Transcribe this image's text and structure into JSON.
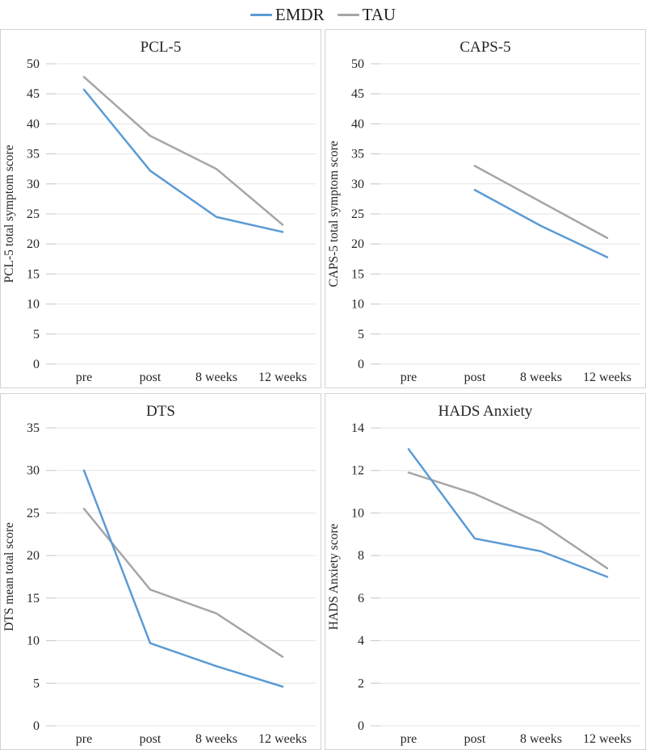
{
  "legend": {
    "position": "top-center",
    "items": [
      {
        "label": "EMDR",
        "color": "#5B9BD5"
      },
      {
        "label": "TAU",
        "color": "#A6A6A6"
      }
    ]
  },
  "style": {
    "gridline_color": "#e4e4e4",
    "tick_stub_color": "#c9c9c9",
    "panel_border_color": "#d2d2d2",
    "text_color": "#262626",
    "line_width": 2.5
  },
  "chart_data": [
    {
      "type": "line",
      "title": "PCL-5",
      "ylabel": "PCL-5 total symptom score",
      "xlabel": "",
      "categories": [
        "pre",
        "post",
        "8 weeks",
        "12 weeks"
      ],
      "ylim": [
        0,
        50
      ],
      "ystep": 5,
      "grid": true,
      "series": [
        {
          "name": "EMDR",
          "color": "#5B9BD5",
          "values": [
            45.7,
            32.2,
            24.5,
            22.0
          ]
        },
        {
          "name": "TAU",
          "color": "#A6A6A6",
          "values": [
            47.8,
            38.0,
            32.5,
            23.2
          ]
        }
      ]
    },
    {
      "type": "line",
      "title": "CAPS-5",
      "ylabel": "CAPS-5 total symptom score",
      "xlabel": "",
      "categories": [
        "pre",
        "post",
        "8 weeks",
        "12 weeks"
      ],
      "ylim": [
        0,
        50
      ],
      "ystep": 5,
      "grid": true,
      "series": [
        {
          "name": "EMDR",
          "color": "#5B9BD5",
          "values": [
            null,
            29.0,
            23.0,
            17.8
          ]
        },
        {
          "name": "TAU",
          "color": "#A6A6A6",
          "values": [
            null,
            33.0,
            27.0,
            21.0
          ]
        }
      ]
    },
    {
      "type": "line",
      "title": "DTS",
      "ylabel": "DTS mean total score",
      "xlabel": "",
      "categories": [
        "pre",
        "post",
        "8 weeks",
        "12 weeks"
      ],
      "ylim": [
        0,
        35
      ],
      "ystep": 5,
      "grid": true,
      "series": [
        {
          "name": "EMDR",
          "color": "#5B9BD5",
          "values": [
            30.0,
            9.7,
            7.0,
            4.6
          ]
        },
        {
          "name": "TAU",
          "color": "#A6A6A6",
          "values": [
            25.5,
            16.0,
            13.2,
            8.1
          ]
        }
      ]
    },
    {
      "type": "line",
      "title": "HADS Anxiety",
      "ylabel": "HADS Anxiety score",
      "xlabel": "",
      "categories": [
        "pre",
        "post",
        "8 weeks",
        "12 weeks"
      ],
      "ylim": [
        0,
        14
      ],
      "ystep": 2,
      "grid": true,
      "series": [
        {
          "name": "EMDR",
          "color": "#5B9BD5",
          "values": [
            13.0,
            8.8,
            8.2,
            7.0
          ]
        },
        {
          "name": "TAU",
          "color": "#A6A6A6",
          "values": [
            11.9,
            10.9,
            9.5,
            7.4
          ]
        }
      ]
    }
  ]
}
